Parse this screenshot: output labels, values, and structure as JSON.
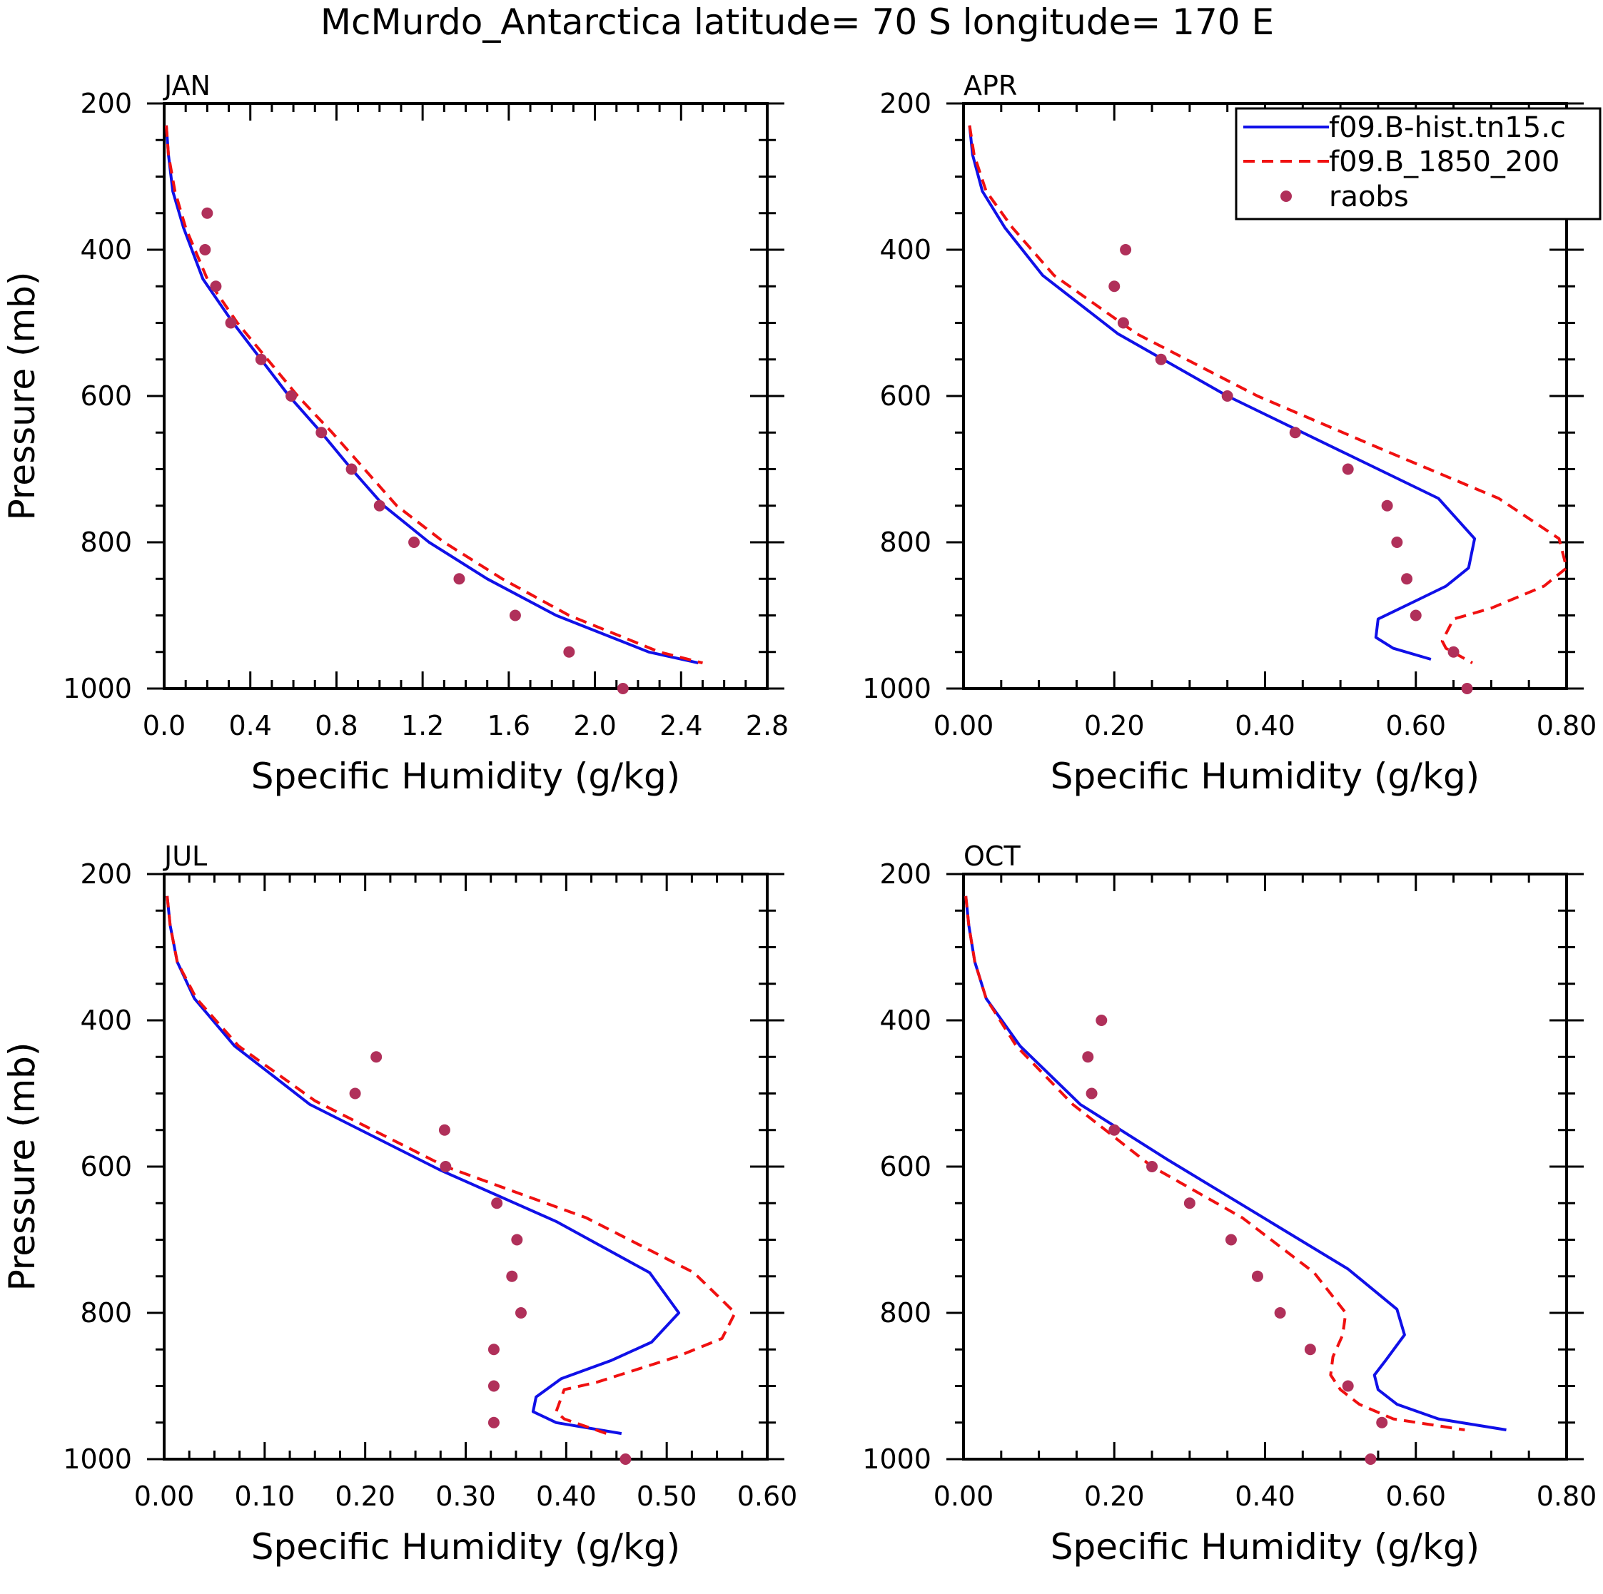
{
  "title": "McMurdo_Antarctica  latitude= 70 S longitude= 170 E",
  "colors": {
    "model_hist": "#1010e8",
    "model_1850": "#f01010",
    "obs": "#b0305a",
    "axis": "#000000"
  },
  "legend": {
    "entries": [
      {
        "label": "f09.B-hist.tn15.c",
        "style": "solid",
        "color": "#1010e8"
      },
      {
        "label": "f09.B_1850_200",
        "style": "dashed",
        "color": "#f01010"
      },
      {
        "label": "raobs",
        "style": "dot",
        "color": "#b0305a"
      }
    ]
  },
  "chart_data": [
    {
      "type": "line",
      "panel": "JAN",
      "title": "JAN",
      "xlabel": "Specific Humidity (g/kg)",
      "ylabel": "Pressure (mb)",
      "xlim": [
        0,
        2.8
      ],
      "ylim": [
        200,
        1000
      ],
      "xticks": [
        "0.0",
        "0.4",
        "0.8",
        "1.2",
        "1.6",
        "2.0",
        "2.4",
        "2.8"
      ],
      "yticks": [
        "200",
        "400",
        "600",
        "800",
        "1000"
      ],
      "series": [
        {
          "name": "f09.B-hist.tn15.c",
          "style": "solid",
          "x": [
            0.01,
            0.02,
            0.04,
            0.09,
            0.18,
            0.32,
            0.45,
            0.58,
            0.73,
            0.87,
            1.02,
            1.23,
            1.5,
            1.82,
            2.25,
            2.48
          ],
          "y": [
            230,
            270,
            320,
            370,
            440,
            500,
            550,
            600,
            650,
            700,
            750,
            800,
            850,
            900,
            950,
            965
          ]
        },
        {
          "name": "f09.B_1850_200",
          "style": "dashed",
          "x": [
            0.01,
            0.02,
            0.05,
            0.1,
            0.2,
            0.34,
            0.48,
            0.62,
            0.78,
            0.93,
            1.08,
            1.3,
            1.57,
            1.88,
            2.3,
            2.5
          ],
          "y": [
            230,
            270,
            320,
            370,
            440,
            500,
            550,
            600,
            650,
            700,
            750,
            800,
            850,
            900,
            950,
            965
          ]
        }
      ],
      "obs": {
        "name": "raobs",
        "x": [
          0.2,
          0.19,
          0.24,
          0.31,
          0.45,
          0.59,
          0.73,
          0.87,
          1.0,
          1.16,
          1.37,
          1.63,
          1.88,
          2.13
        ],
        "y": [
          350,
          400,
          450,
          500,
          550,
          600,
          650,
          700,
          750,
          800,
          850,
          900,
          950,
          1000
        ]
      }
    },
    {
      "type": "line",
      "panel": "APR",
      "title": "APR",
      "xlabel": "Specific Humidity (g/kg)",
      "ylabel": "",
      "xlim": [
        0,
        0.8
      ],
      "ylim": [
        200,
        1000
      ],
      "xticks": [
        "0.00",
        "0.20",
        "0.40",
        "0.60",
        "0.80"
      ],
      "yticks": [
        "200",
        "400",
        "600",
        "800",
        "1000"
      ],
      "series": [
        {
          "name": "f09.B-hist.tn15.c",
          "style": "solid",
          "x": [
            0.008,
            0.012,
            0.025,
            0.055,
            0.105,
            0.205,
            0.35,
            0.5,
            0.63,
            0.678,
            0.67,
            0.64,
            0.6,
            0.55,
            0.547,
            0.57,
            0.62
          ],
          "y": [
            230,
            270,
            320,
            370,
            435,
            515,
            600,
            675,
            740,
            795,
            835,
            860,
            880,
            905,
            930,
            945,
            960
          ]
        },
        {
          "name": "f09.B_1850_200",
          "style": "dashed",
          "x": [
            0.008,
            0.014,
            0.03,
            0.065,
            0.12,
            0.23,
            0.39,
            0.56,
            0.71,
            0.79,
            0.8,
            0.77,
            0.7,
            0.65,
            0.635,
            0.64,
            0.675
          ],
          "y": [
            230,
            270,
            320,
            370,
            435,
            515,
            600,
            675,
            740,
            795,
            835,
            860,
            890,
            905,
            935,
            945,
            965
          ]
        }
      ],
      "obs": {
        "name": "raobs",
        "x": [
          0.215,
          0.2,
          0.212,
          0.262,
          0.35,
          0.44,
          0.51,
          0.562,
          0.575,
          0.588,
          0.6,
          0.65,
          0.668
        ],
        "y": [
          400,
          450,
          500,
          550,
          600,
          650,
          700,
          750,
          800,
          850,
          900,
          950,
          1000
        ]
      }
    },
    {
      "type": "line",
      "panel": "JUL",
      "title": "JUL",
      "xlabel": "Specific Humidity (g/kg)",
      "ylabel": "Pressure (mb)",
      "xlim": [
        0,
        0.6
      ],
      "ylim": [
        200,
        1000
      ],
      "xticks": [
        "0.00",
        "0.10",
        "0.20",
        "0.30",
        "0.40",
        "0.50",
        "0.60"
      ],
      "yticks": [
        "200",
        "400",
        "600",
        "800",
        "1000"
      ],
      "series": [
        {
          "name": "f09.B-hist.tn15.c",
          "style": "solid",
          "x": [
            0.003,
            0.006,
            0.013,
            0.03,
            0.07,
            0.145,
            0.275,
            0.39,
            0.483,
            0.512,
            0.485,
            0.445,
            0.395,
            0.37,
            0.367,
            0.39,
            0.455
          ],
          "y": [
            230,
            270,
            320,
            370,
            435,
            515,
            605,
            675,
            745,
            800,
            840,
            865,
            890,
            915,
            935,
            950,
            965
          ]
        },
        {
          "name": "f09.B_1850_200",
          "style": "dashed",
          "x": [
            0.003,
            0.006,
            0.013,
            0.032,
            0.074,
            0.15,
            0.28,
            0.42,
            0.527,
            0.568,
            0.555,
            0.51,
            0.43,
            0.398,
            0.39,
            0.398,
            0.44
          ],
          "y": [
            230,
            270,
            320,
            370,
            435,
            510,
            600,
            670,
            745,
            800,
            835,
            860,
            895,
            905,
            935,
            945,
            965
          ]
        }
      ],
      "obs": {
        "name": "raobs",
        "x": [
          0.211,
          0.19,
          0.279,
          0.28,
          0.331,
          0.351,
          0.346,
          0.355,
          0.328,
          0.328,
          0.328,
          0.459
        ],
        "y": [
          450,
          500,
          550,
          600,
          650,
          700,
          750,
          800,
          850,
          900,
          950,
          1000
        ]
      }
    },
    {
      "type": "line",
      "panel": "OCT",
      "title": "OCT",
      "xlabel": "Specific Humidity (g/kg)",
      "ylabel": "Pressure (mb)",
      "xlim": [
        0,
        0.8
      ],
      "ylim": [
        200,
        1000
      ],
      "xticks": [
        "0.00",
        "0.20",
        "0.40",
        "0.60",
        "0.80"
      ],
      "yticks": [
        "200",
        "400",
        "600",
        "800",
        "1000"
      ],
      "series": [
        {
          "name": "f09.B-hist.tn15.c",
          "style": "solid",
          "x": [
            0.003,
            0.007,
            0.015,
            0.03,
            0.075,
            0.155,
            0.27,
            0.39,
            0.51,
            0.575,
            0.585,
            0.56,
            0.545,
            0.55,
            0.575,
            0.63,
            0.72
          ],
          "y": [
            230,
            270,
            320,
            370,
            435,
            515,
            590,
            665,
            740,
            795,
            830,
            865,
            885,
            905,
            925,
            945,
            960
          ]
        },
        {
          "name": "f09.B_1850_200",
          "style": "dashed",
          "x": [
            0.003,
            0.007,
            0.015,
            0.03,
            0.07,
            0.145,
            0.25,
            0.37,
            0.465,
            0.507,
            0.503,
            0.49,
            0.487,
            0.5,
            0.525,
            0.57,
            0.665
          ],
          "y": [
            230,
            270,
            320,
            370,
            435,
            515,
            600,
            670,
            745,
            800,
            830,
            860,
            885,
            905,
            925,
            945,
            960
          ]
        }
      ],
      "obs": {
        "name": "raobs",
        "x": [
          0.183,
          0.165,
          0.17,
          0.2,
          0.25,
          0.3,
          0.355,
          0.39,
          0.42,
          0.46,
          0.51,
          0.555,
          0.54
        ],
        "y": [
          400,
          450,
          500,
          550,
          600,
          650,
          700,
          750,
          800,
          850,
          900,
          950,
          1000
        ]
      }
    }
  ]
}
